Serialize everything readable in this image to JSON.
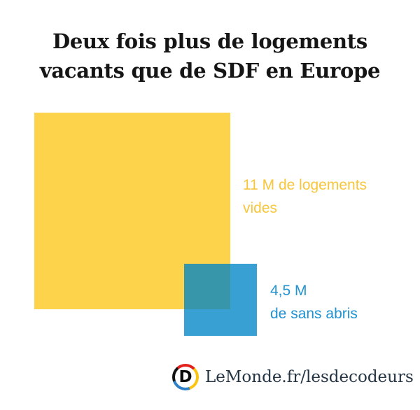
{
  "title": {
    "line1": "Deux fois plus de logements",
    "line2": "vacants que de SDF en Europe"
  },
  "chart_data": {
    "type": "area",
    "title": "Deux fois plus de logements vacants que de SDF en Europe",
    "categories": [
      "Logements vides",
      "Sans abris"
    ],
    "values": [
      11,
      4.5
    ],
    "unit": "millions",
    "annotations": [
      "11 M de logements vides",
      "4,5 M de sans abris"
    ],
    "colors": [
      "#fcd34b",
      "#3a9fd1"
    ],
    "overlap_color": "#3796a8",
    "legend_position": "labels-beside-shapes",
    "grid": false
  },
  "labels": {
    "vacant": {
      "line1": "11 M de logements",
      "line2": "vides",
      "color": "#f8c63b"
    },
    "homeless": {
      "line1": "4,5 M",
      "line2": "de sans abris",
      "color": "#2193d2"
    }
  },
  "footer": {
    "logo_letter": "D",
    "site_text": "LeMonde.fr/lesdecodeurs"
  }
}
